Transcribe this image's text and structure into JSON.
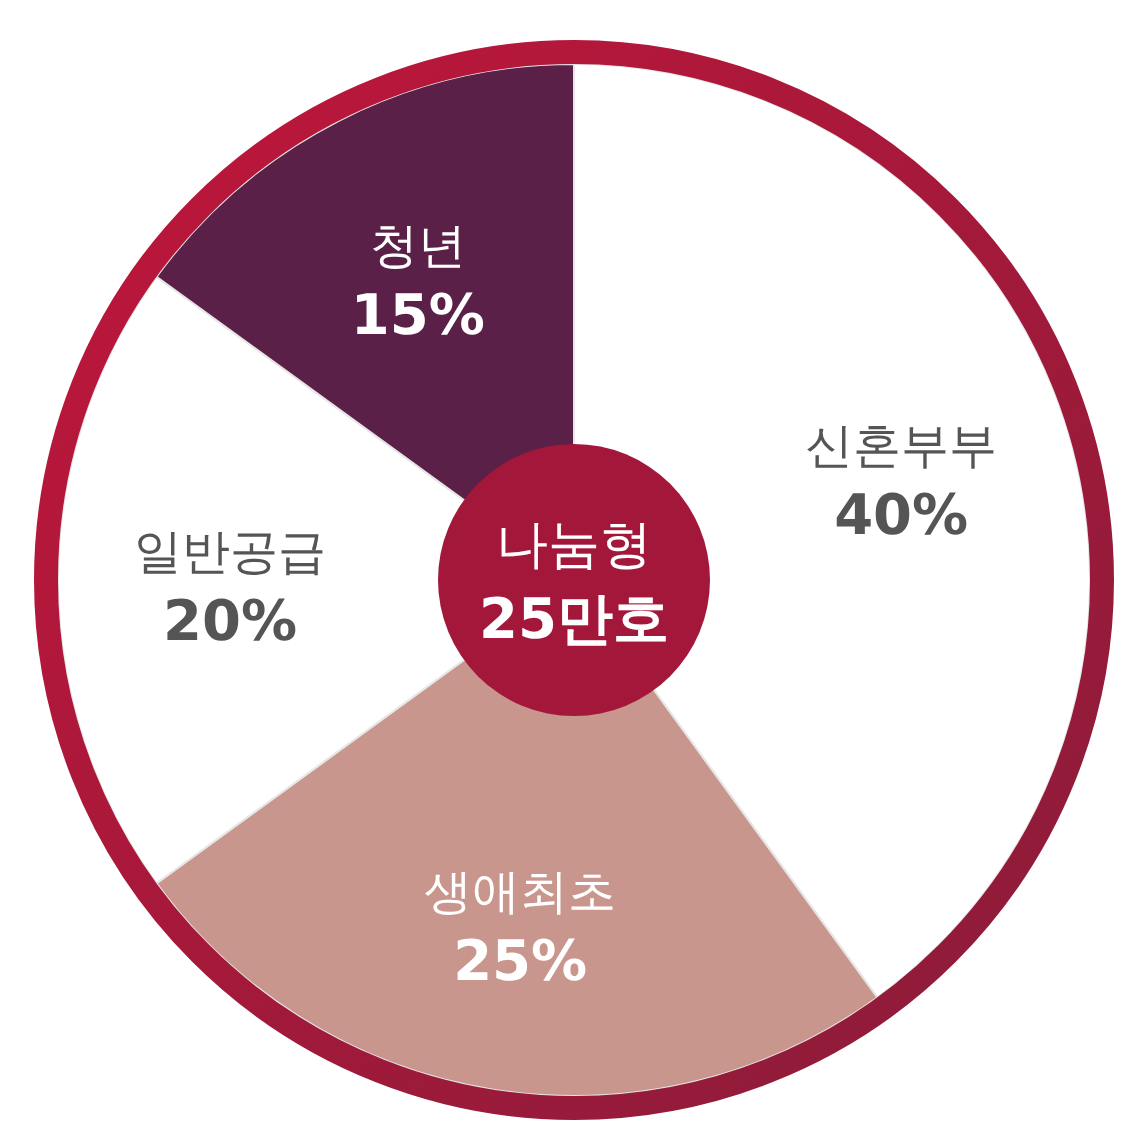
{
  "chart_data": {
    "type": "donut",
    "title": "나눔형 25만호",
    "categories": [
      "신혼부부",
      "생애최초",
      "일반공급",
      "청년"
    ],
    "values": [
      40,
      25,
      20,
      15
    ],
    "colors": [
      "#ffffff",
      "#c9968d",
      "#ffffff",
      "#5a2048"
    ],
    "value_labels": [
      "40%",
      "25%",
      "20%",
      "15%"
    ]
  }
}
